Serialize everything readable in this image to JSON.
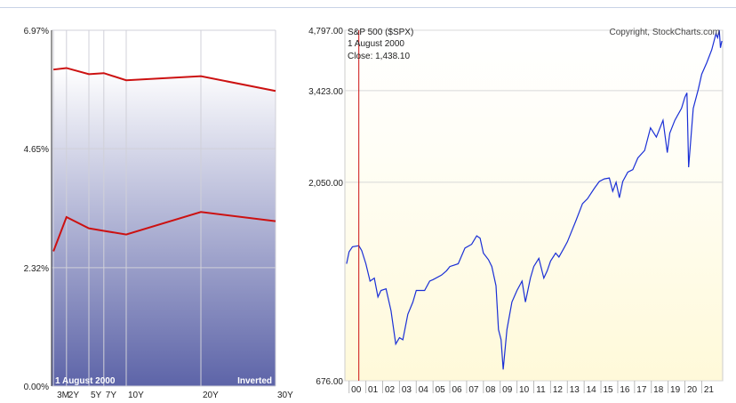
{
  "chart_data": [
    {
      "type": "line",
      "title": "",
      "categories": [
        "3M",
        "2Y",
        "5Y",
        "7Y",
        "10Y",
        "20Y",
        "30Y"
      ],
      "series": [
        {
          "values": [
            6.2,
            6.23,
            6.11,
            6.13,
            5.99,
            6.07,
            5.78
          ]
        },
        {
          "values": [
            2.64,
            3.31,
            3.09,
            3.04,
            2.97,
            3.41,
            3.23
          ]
        }
      ],
      "ylim": [
        0.0,
        6.97
      ],
      "yticks": [
        "0.00%",
        "2.32%",
        "4.65%",
        "6.97%"
      ],
      "date_label": "1  August 2000",
      "inverted_label": "Inverted",
      "colors": {
        "line": "#cc1111",
        "gradient_top": "#ffffff",
        "gradient_bottom": "#5d64a8"
      }
    },
    {
      "type": "line",
      "title": "S&P 500 ($SPX)",
      "copyright": "Copyright, StockCharts.com",
      "scale": "log",
      "ylim": [
        676,
        4797
      ],
      "yticks": [
        "676.00",
        "2,050.00",
        "3,423.00",
        "4,797.00"
      ],
      "xticks": [
        "00",
        "01",
        "02",
        "03",
        "04",
        "05",
        "06",
        "07",
        "08",
        "09",
        "10",
        "11",
        "12",
        "13",
        "14",
        "15",
        "16",
        "17",
        "18",
        "19",
        "20",
        "21"
      ],
      "marker": {
        "x": 2000.58,
        "date_label": "1  August 2000",
        "close_label": "Close: 1,438.10"
      },
      "series": [
        {
          "color": "#1a2fd6",
          "x": [
            1999.85,
            2000.0,
            2000.2,
            2000.58,
            2000.75,
            2001.0,
            2001.25,
            2001.5,
            2001.72,
            2001.9,
            2002.2,
            2002.5,
            2002.78,
            2003.0,
            2003.2,
            2003.5,
            2003.8,
            2004.0,
            2004.5,
            2004.8,
            2005.0,
            2005.5,
            2005.8,
            2006.0,
            2006.5,
            2006.9,
            2007.3,
            2007.6,
            2007.8,
            2008.0,
            2008.3,
            2008.5,
            2008.75,
            2008.9,
            2009.05,
            2009.18,
            2009.4,
            2009.7,
            2010.0,
            2010.3,
            2010.5,
            2010.8,
            2011.0,
            2011.3,
            2011.6,
            2011.8,
            2012.0,
            2012.3,
            2012.5,
            2012.8,
            2013.0,
            2013.5,
            2013.9,
            2014.2,
            2014.6,
            2014.9,
            2015.2,
            2015.5,
            2015.7,
            2015.9,
            2016.1,
            2016.3,
            2016.6,
            2016.9,
            2017.2,
            2017.6,
            2017.95,
            2018.1,
            2018.3,
            2018.7,
            2018.95,
            2019.1,
            2019.4,
            2019.8,
            2020.0,
            2020.12,
            2020.22,
            2020.5,
            2020.8,
            2021.0,
            2021.3,
            2021.6,
            2021.85,
            2021.95,
            2022.05,
            2022.12,
            2022.2
          ],
          "y": [
            1300,
            1390,
            1430,
            1438,
            1400,
            1300,
            1180,
            1200,
            1080,
            1120,
            1130,
            1000,
            830,
            860,
            850,
            980,
            1050,
            1120,
            1120,
            1180,
            1190,
            1220,
            1250,
            1280,
            1300,
            1420,
            1450,
            1520,
            1500,
            1380,
            1330,
            1280,
            1150,
            900,
            850,
            720,
            900,
            1050,
            1120,
            1180,
            1050,
            1200,
            1280,
            1340,
            1200,
            1250,
            1320,
            1380,
            1350,
            1420,
            1470,
            1650,
            1820,
            1870,
            1980,
            2060,
            2090,
            2100,
            1950,
            2050,
            1880,
            2060,
            2170,
            2200,
            2350,
            2450,
            2780,
            2720,
            2640,
            2900,
            2420,
            2700,
            2900,
            3100,
            3300,
            3380,
            2230,
            3100,
            3450,
            3750,
            4000,
            4300,
            4700,
            4600,
            4800,
            4350,
            4520
          ]
        }
      ]
    }
  ]
}
